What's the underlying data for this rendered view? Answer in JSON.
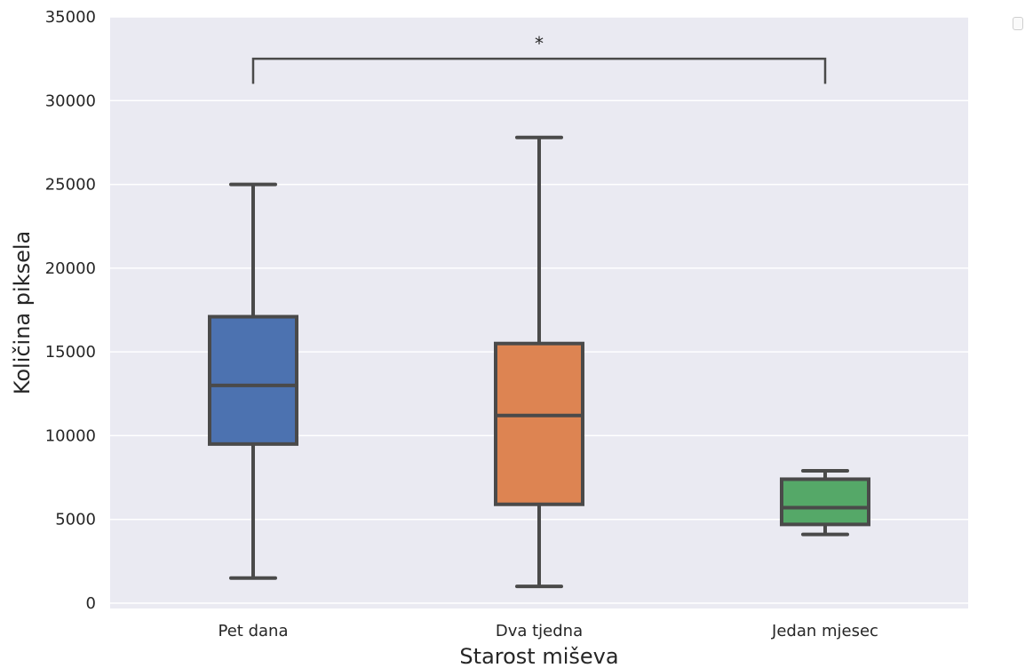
{
  "chart_data": {
    "type": "box",
    "xlabel": "Starost miševa",
    "ylabel": "Količina piksela",
    "ylim": [
      0,
      35000
    ],
    "yticks": [
      0,
      5000,
      10000,
      15000,
      20000,
      25000,
      30000,
      35000
    ],
    "ytick_labels": [
      "0",
      "5000",
      "10000",
      "15000",
      "20000",
      "25000",
      "30000",
      "35000"
    ],
    "grid": true,
    "categories": [
      "Pet dana",
      "Dva tjedna",
      "Jedan mjesec"
    ],
    "boxes": [
      {
        "category": "Pet dana",
        "whisker_low": 1500,
        "q1": 9500,
        "median": 13000,
        "q3": 17100,
        "whisker_high": 25000,
        "color": "#4c72b0"
      },
      {
        "category": "Dva tjedna",
        "whisker_low": 1000,
        "q1": 5900,
        "median": 11200,
        "q3": 15500,
        "whisker_high": 27800,
        "color": "#dd8452"
      },
      {
        "category": "Jedan mjesec",
        "whisker_low": 4100,
        "q1": 4700,
        "median": 5700,
        "q3": 7400,
        "whisker_high": 7900,
        "color": "#55a868"
      }
    ],
    "annotations": [
      {
        "text": "*",
        "from": "Pet dana",
        "to": "Jedan mjesec",
        "bracket_top": 32500,
        "bracket_bottom": 31000
      }
    ],
    "legend": "top-right",
    "background": "#eaeaf2",
    "line_color": "#4a4a4a"
  }
}
